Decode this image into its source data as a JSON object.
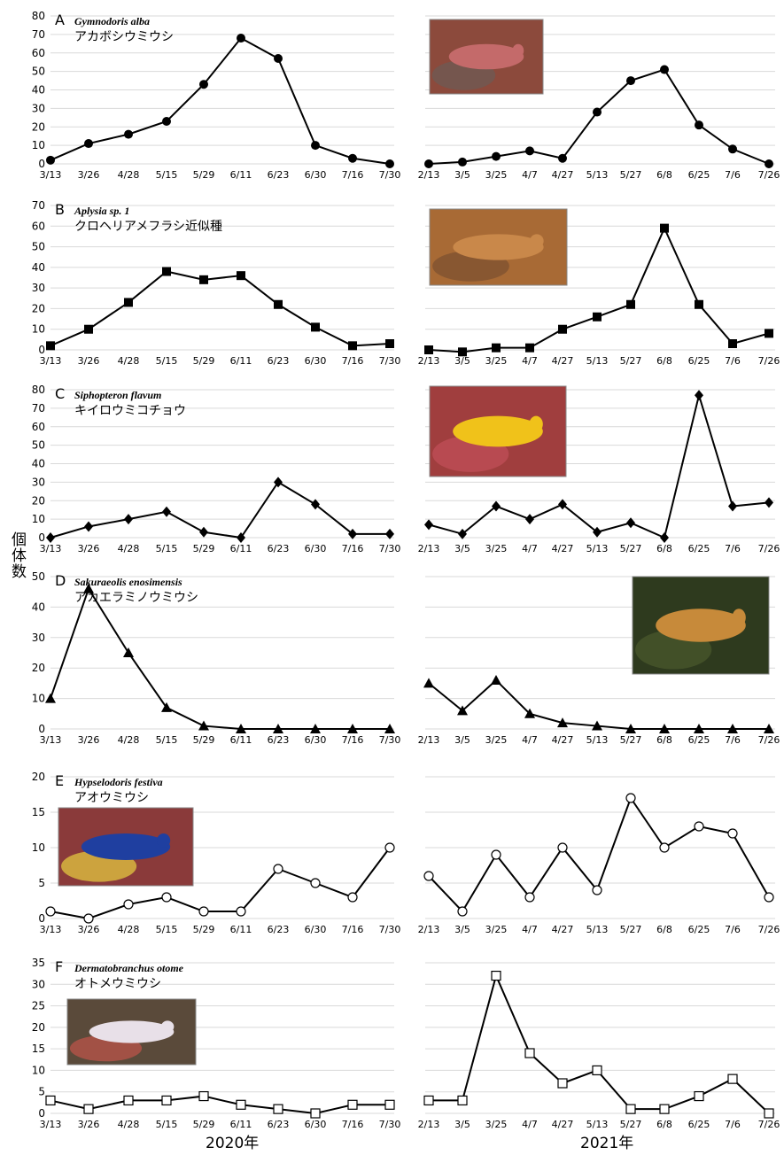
{
  "ylabel": "個体数",
  "years": [
    "2020年",
    "2021年"
  ],
  "photo_colors": {
    "A": [
      "#8c4a3c",
      "#c46a6a",
      "#6b5b55"
    ],
    "B": [
      "#a86a35",
      "#c9884a",
      "#7a5030"
    ],
    "C": [
      "#a03e3e",
      "#f0c21a",
      "#c2505a"
    ],
    "D": [
      "#2e3a1e",
      "#c78a3a",
      "#4c5a2c"
    ],
    "E": [
      "#8a3a3a",
      "#1f3fa0",
      "#e8d040"
    ],
    "F": [
      "#5a4a3a",
      "#e8e0e8",
      "#c0544a"
    ]
  },
  "chart_data": [
    {
      "type": "line",
      "panel": "A",
      "scientific_name": "Gymnodoris alba",
      "japanese_name": "アカボシウミウシ",
      "marker": "circle",
      "ylim": [
        0,
        80
      ],
      "yticks": [
        0,
        10,
        20,
        30,
        40,
        50,
        60,
        70,
        80
      ],
      "grid": true,
      "x2020": [
        "3/13",
        "3/26",
        "4/28",
        "5/15",
        "5/29",
        "6/11",
        "6/23",
        "6/30",
        "7/16",
        "7/30"
      ],
      "y2020": [
        2,
        11,
        16,
        23,
        43,
        68,
        57,
        10,
        3,
        0
      ],
      "x2021": [
        "2/13",
        "3/5",
        "3/25",
        "4/7",
        "4/27",
        "5/13",
        "5/27",
        "6/8",
        "6/25",
        "7/6",
        "7/26"
      ],
      "y2021": [
        0,
        1,
        4,
        7,
        3,
        28,
        45,
        51,
        21,
        8,
        0
      ]
    },
    {
      "type": "line",
      "panel": "B",
      "scientific_name": "Aplysia sp. 1",
      "japanese_name": "クロヘリアメフラシ近似種",
      "marker": "square",
      "ylim": [
        0,
        70
      ],
      "yticks": [
        0,
        10,
        20,
        30,
        40,
        50,
        60,
        70
      ],
      "grid": true,
      "x2020": [
        "3/13",
        "3/26",
        "4/28",
        "5/15",
        "5/29",
        "6/11",
        "6/23",
        "6/30",
        "7/16",
        "7/30"
      ],
      "y2020": [
        2,
        10,
        23,
        38,
        34,
        36,
        22,
        11,
        2,
        3
      ],
      "x2021": [
        "2/13",
        "3/5",
        "3/25",
        "4/7",
        "4/27",
        "5/13",
        "5/27",
        "6/8",
        "6/25",
        "7/6",
        "7/26"
      ],
      "y2021": [
        0,
        -1,
        1,
        1,
        10,
        16,
        22,
        59,
        22,
        3,
        8
      ]
    },
    {
      "type": "line",
      "panel": "C",
      "scientific_name": "Siphopteron flavum",
      "japanese_name": "キイロウミコチョウ",
      "marker": "diamond",
      "ylim": [
        0,
        80
      ],
      "yticks": [
        0,
        10,
        20,
        30,
        40,
        50,
        60,
        70,
        80
      ],
      "grid": true,
      "x2020": [
        "3/13",
        "3/26",
        "4/28",
        "5/15",
        "5/29",
        "6/11",
        "6/23",
        "6/30",
        "7/16",
        "7/30"
      ],
      "y2020": [
        0,
        6,
        10,
        14,
        3,
        0,
        30,
        18,
        2,
        2
      ],
      "x2021": [
        "2/13",
        "3/5",
        "3/25",
        "4/7",
        "4/27",
        "5/13",
        "5/27",
        "6/8",
        "6/25",
        "7/6",
        "7/26"
      ],
      "y2021": [
        7,
        2,
        17,
        10,
        18,
        3,
        8,
        0,
        77,
        17,
        19
      ]
    },
    {
      "type": "line",
      "panel": "D",
      "scientific_name": "Sakuraeolis enosimensis",
      "japanese_name": "アカエラミノウミウシ",
      "marker": "triangle",
      "ylim": [
        0,
        50
      ],
      "yticks": [
        0,
        10,
        20,
        30,
        40,
        50
      ],
      "grid": true,
      "x2020": [
        "3/13",
        "3/26",
        "4/28",
        "5/15",
        "5/29",
        "6/11",
        "6/23",
        "6/30",
        "7/16",
        "7/30"
      ],
      "y2020": [
        10,
        46,
        25,
        7,
        1,
        0,
        0,
        0,
        0,
        0
      ],
      "x2021": [
        "2/13",
        "3/5",
        "3/25",
        "4/7",
        "4/27",
        "5/13",
        "5/27",
        "6/8",
        "6/25",
        "7/6",
        "7/26"
      ],
      "y2021": [
        15,
        6,
        16,
        5,
        2,
        1,
        0,
        0,
        0,
        0,
        0
      ]
    },
    {
      "type": "line",
      "panel": "E",
      "scientific_name": "Hypselodoris festiva",
      "japanese_name": "アオウミウシ",
      "marker": "open-circle",
      "ylim": [
        0,
        20
      ],
      "yticks": [
        0,
        5,
        10,
        15,
        20
      ],
      "grid": true,
      "x2020": [
        "3/13",
        "3/26",
        "4/28",
        "5/15",
        "5/29",
        "6/11",
        "6/23",
        "6/30",
        "7/16",
        "7/30"
      ],
      "y2020": [
        1,
        0,
        2,
        3,
        1,
        1,
        7,
        5,
        3,
        10
      ],
      "x2021": [
        "2/13",
        "3/5",
        "3/25",
        "4/7",
        "4/27",
        "5/13",
        "5/27",
        "6/8",
        "6/25",
        "7/6",
        "7/26"
      ],
      "y2021": [
        6,
        1,
        9,
        3,
        10,
        4,
        17,
        10,
        13,
        12,
        3
      ]
    },
    {
      "type": "line",
      "panel": "F",
      "scientific_name": "Dermatobranchus otome",
      "japanese_name": "オトメウミウシ",
      "marker": "open-square",
      "ylim": [
        0,
        35
      ],
      "yticks": [
        0,
        5,
        10,
        15,
        20,
        25,
        30,
        35
      ],
      "grid": true,
      "x2020": [
        "3/13",
        "3/26",
        "4/28",
        "5/15",
        "5/29",
        "6/11",
        "6/23",
        "6/30",
        "7/16",
        "7/30"
      ],
      "y2020": [
        3,
        1,
        3,
        3,
        4,
        2,
        1,
        0,
        2,
        2
      ],
      "x2021": [
        "2/13",
        "3/5",
        "3/25",
        "4/7",
        "4/27",
        "5/13",
        "5/27",
        "6/8",
        "6/25",
        "7/6",
        "7/26"
      ],
      "y2021": [
        3,
        3,
        32,
        14,
        7,
        10,
        1,
        1,
        4,
        8,
        0
      ]
    }
  ]
}
